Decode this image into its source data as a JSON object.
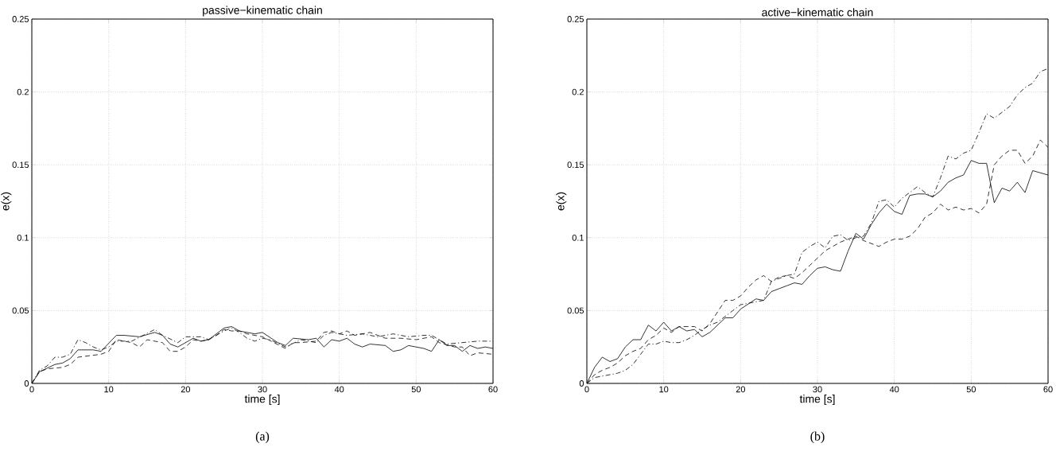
{
  "chart_data": [
    {
      "type": "line",
      "title": "passive−kinematic chain",
      "xlabel": "time [s]",
      "ylabel": "e(x)",
      "annotations": [
        "(a)"
      ],
      "xlim": [
        0,
        60
      ],
      "ylim": [
        0,
        0.25
      ],
      "xticks": [
        0,
        10,
        20,
        30,
        40,
        50,
        60
      ],
      "yticks": [
        0,
        0.05,
        0.1,
        0.15,
        0.2,
        0.25
      ],
      "grid": true,
      "series": [
        {
          "color": "#000000",
          "line_style": "solid",
          "x": [
            0,
            1,
            3,
            4,
            5,
            6,
            8,
            9,
            11,
            12,
            14,
            16,
            17,
            18,
            19,
            21,
            22,
            23,
            25,
            26,
            27,
            29,
            30,
            32,
            33,
            34,
            36,
            37,
            38,
            39,
            40,
            41,
            42,
            43,
            44,
            46,
            47,
            48,
            49,
            51,
            52,
            53,
            54,
            55,
            56,
            57,
            58,
            59,
            60
          ],
          "values": [
            0,
            0.008,
            0.013,
            0.014,
            0.017,
            0.023,
            0.023,
            0.022,
            0.033,
            0.033,
            0.032,
            0.035,
            0.033,
            0.027,
            0.025,
            0.031,
            0.029,
            0.03,
            0.038,
            0.039,
            0.036,
            0.034,
            0.035,
            0.028,
            0.026,
            0.031,
            0.03,
            0.031,
            0.025,
            0.03,
            0.029,
            0.031,
            0.027,
            0.025,
            0.027,
            0.026,
            0.022,
            0.023,
            0.026,
            0.024,
            0.022,
            0.03,
            0.026,
            0.026,
            0.022,
            0.026,
            0.024,
            0.025,
            0.024
          ]
        },
        {
          "color": "#000000",
          "line_style": "dashed",
          "x": [
            0,
            1,
            2,
            4,
            5,
            6,
            9,
            10,
            11,
            13,
            14,
            15,
            17,
            18,
            19,
            20,
            21,
            22,
            23,
            24,
            25,
            26,
            27,
            28,
            30,
            33,
            34,
            35,
            37,
            38,
            39,
            40,
            41,
            42,
            44,
            46,
            48,
            50,
            52,
            53,
            55,
            56,
            57,
            58,
            60
          ],
          "values": [
            0,
            0.008,
            0.01,
            0.011,
            0.013,
            0.018,
            0.02,
            0.022,
            0.03,
            0.028,
            0.025,
            0.03,
            0.028,
            0.022,
            0.022,
            0.025,
            0.03,
            0.029,
            0.03,
            0.033,
            0.037,
            0.036,
            0.036,
            0.034,
            0.032,
            0.024,
            0.028,
            0.028,
            0.029,
            0.035,
            0.036,
            0.034,
            0.036,
            0.033,
            0.035,
            0.031,
            0.031,
            0.03,
            0.032,
            0.028,
            0.025,
            0.025,
            0.019,
            0.021,
            0.02
          ]
        },
        {
          "color": "#000000",
          "line_style": "dashdot",
          "x": [
            0,
            1,
            2,
            3,
            4,
            5,
            6,
            7,
            8,
            9,
            10,
            11,
            13,
            16,
            17,
            19,
            20,
            22,
            23,
            25,
            26,
            27,
            28,
            29,
            30,
            31,
            33,
            35,
            37,
            38,
            39,
            41,
            43,
            45,
            47,
            49,
            51,
            52,
            54,
            56,
            58,
            60
          ],
          "values": [
            0,
            0.009,
            0.012,
            0.018,
            0.018,
            0.02,
            0.03,
            0.028,
            0.025,
            0.023,
            0.025,
            0.029,
            0.029,
            0.037,
            0.033,
            0.028,
            0.032,
            0.032,
            0.03,
            0.036,
            0.038,
            0.035,
            0.031,
            0.029,
            0.031,
            0.03,
            0.025,
            0.03,
            0.028,
            0.033,
            0.035,
            0.033,
            0.034,
            0.032,
            0.034,
            0.032,
            0.033,
            0.033,
            0.027,
            0.028,
            0.029,
            0.029
          ]
        }
      ]
    },
    {
      "type": "line",
      "title": "active−kinematic chain",
      "xlabel": "time [s]",
      "ylabel": "e(x)",
      "annotations": [
        "(b)"
      ],
      "xlim": [
        0,
        60
      ],
      "ylim": [
        0,
        0.25
      ],
      "xticks": [
        0,
        10,
        20,
        30,
        40,
        50,
        60
      ],
      "yticks": [
        0,
        0.05,
        0.1,
        0.15,
        0.2,
        0.25
      ],
      "grid": true,
      "series": [
        {
          "color": "#000000",
          "line_style": "solid",
          "x": [
            0,
            1,
            2,
            3,
            4,
            5,
            6,
            7,
            8,
            9,
            10,
            11,
            12,
            13,
            14,
            15,
            16,
            17,
            18,
            19,
            20,
            22,
            23,
            24,
            25,
            26,
            27,
            28,
            29,
            30,
            31,
            32,
            33,
            34,
            35,
            36,
            37,
            38,
            39,
            40,
            41,
            42,
            43,
            44,
            45,
            46,
            47,
            48,
            49,
            50,
            51,
            52,
            53,
            54,
            55,
            56,
            57,
            58,
            60
          ],
          "values": [
            0,
            0.011,
            0.018,
            0.015,
            0.017,
            0.025,
            0.03,
            0.03,
            0.04,
            0.036,
            0.042,
            0.036,
            0.039,
            0.036,
            0.037,
            0.032,
            0.035,
            0.04,
            0.045,
            0.045,
            0.051,
            0.058,
            0.057,
            0.063,
            0.065,
            0.067,
            0.069,
            0.068,
            0.074,
            0.079,
            0.08,
            0.078,
            0.077,
            0.091,
            0.103,
            0.099,
            0.109,
            0.117,
            0.123,
            0.118,
            0.116,
            0.129,
            0.13,
            0.13,
            0.128,
            0.132,
            0.138,
            0.141,
            0.143,
            0.153,
            0.151,
            0.151,
            0.124,
            0.134,
            0.132,
            0.138,
            0.131,
            0.146,
            0.143
          ]
        },
        {
          "color": "#000000",
          "line_style": "dashed",
          "x": [
            0,
            1,
            2,
            3,
            4,
            5,
            6,
            7,
            8,
            9,
            10,
            11,
            12,
            13,
            14,
            15,
            16,
            17,
            18,
            19,
            20,
            21,
            22,
            23,
            24,
            25,
            26,
            27,
            28,
            29,
            30,
            31,
            32,
            33,
            34,
            35,
            36,
            37,
            38,
            39,
            40,
            41,
            42,
            43,
            44,
            45,
            46,
            47,
            48,
            49,
            50,
            51,
            52,
            53,
            54,
            55,
            56,
            57,
            58,
            59,
            60
          ],
          "values": [
            0,
            0.006,
            0.009,
            0.011,
            0.014,
            0.019,
            0.022,
            0.024,
            0.03,
            0.033,
            0.038,
            0.035,
            0.039,
            0.039,
            0.039,
            0.036,
            0.041,
            0.049,
            0.057,
            0.057,
            0.06,
            0.066,
            0.071,
            0.074,
            0.07,
            0.073,
            0.074,
            0.072,
            0.076,
            0.081,
            0.086,
            0.091,
            0.094,
            0.097,
            0.099,
            0.101,
            0.098,
            0.096,
            0.094,
            0.097,
            0.099,
            0.099,
            0.101,
            0.106,
            0.114,
            0.117,
            0.123,
            0.119,
            0.121,
            0.119,
            0.12,
            0.117,
            0.123,
            0.15,
            0.156,
            0.16,
            0.16,
            0.151,
            0.156,
            0.167,
            0.162
          ]
        },
        {
          "color": "#000000",
          "line_style": "dashdot",
          "x": [
            0,
            1,
            2,
            4,
            5,
            6,
            7,
            8,
            9,
            10,
            11,
            12,
            13,
            14,
            15,
            16,
            17,
            18,
            19,
            20,
            21,
            22,
            23,
            24,
            25,
            26,
            27,
            28,
            29,
            30,
            31,
            32,
            33,
            34,
            35,
            36,
            37,
            38,
            39,
            40,
            41,
            42,
            43,
            44,
            45,
            46,
            47,
            48,
            49,
            50,
            51,
            52,
            53,
            54,
            55,
            56,
            57,
            58,
            59,
            60
          ],
          "values": [
            0,
            0.004,
            0.005,
            0.007,
            0.009,
            0.013,
            0.02,
            0.027,
            0.027,
            0.029,
            0.028,
            0.028,
            0.03,
            0.033,
            0.037,
            0.04,
            0.042,
            0.046,
            0.05,
            0.054,
            0.055,
            0.056,
            0.057,
            0.07,
            0.072,
            0.074,
            0.075,
            0.09,
            0.094,
            0.097,
            0.093,
            0.101,
            0.102,
            0.098,
            0.1,
            0.101,
            0.11,
            0.125,
            0.126,
            0.121,
            0.127,
            0.131,
            0.135,
            0.131,
            0.128,
            0.141,
            0.156,
            0.154,
            0.158,
            0.16,
            0.172,
            0.185,
            0.182,
            0.186,
            0.19,
            0.198,
            0.203,
            0.206,
            0.214,
            0.216
          ]
        }
      ]
    }
  ]
}
